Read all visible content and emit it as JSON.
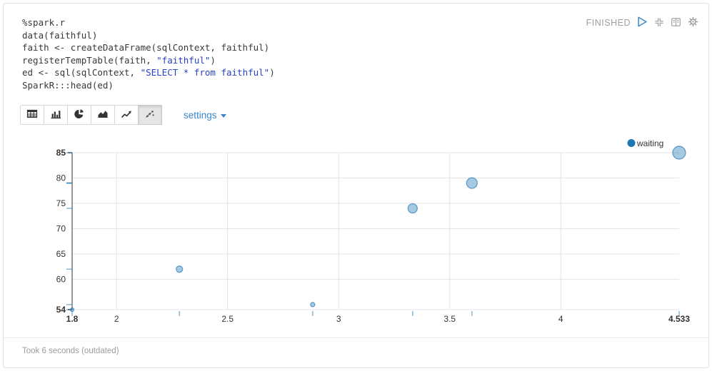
{
  "paragraph": {
    "status_label": "FINISHED",
    "footer_text": "Took 6 seconds (outdated)"
  },
  "code_editor": {
    "interpreter": "%spark.r",
    "lines": [
      [
        {
          "t": "%spark.r"
        }
      ],
      [
        {
          "t": "data(faithful)"
        }
      ],
      [
        {
          "t": "faith <- createDataFrame(sqlContext, faithful)"
        }
      ],
      [
        {
          "t": "registerTempTable(faith, "
        },
        {
          "t": "\"faithful\"",
          "s": "string"
        },
        {
          "t": ")"
        }
      ],
      [
        {
          "t": "ed <- sql(sqlContext, "
        },
        {
          "t": "\"SELECT * from faithful\"",
          "s": "string"
        },
        {
          "t": ")"
        }
      ],
      [
        {
          "t": "SparkR:::head(ed)"
        }
      ]
    ]
  },
  "toolbar": {
    "viz_buttons": [
      {
        "name": "table",
        "selected": false
      },
      {
        "name": "bar-chart",
        "selected": false
      },
      {
        "name": "pie-chart",
        "selected": false
      },
      {
        "name": "area-chart",
        "selected": false
      },
      {
        "name": "line-chart",
        "selected": false
      },
      {
        "name": "scatter-chart",
        "selected": true
      }
    ],
    "settings_label": "settings"
  },
  "chart_data": {
    "type": "scatter",
    "title": "",
    "xlabel": "",
    "ylabel": "",
    "xlim": [
      1.8,
      4.533
    ],
    "ylim": [
      54,
      85
    ],
    "grid": true,
    "legend_position": "top-right",
    "legend": [
      {
        "label": "waiting",
        "color": "#1f77b4"
      }
    ],
    "x_ticks": [
      {
        "v": 1.8,
        "label": "1.8",
        "bold": true
      },
      {
        "v": 2,
        "label": "2",
        "bold": false
      },
      {
        "v": 2.5,
        "label": "2.5",
        "bold": false
      },
      {
        "v": 3,
        "label": "3",
        "bold": false
      },
      {
        "v": 3.5,
        "label": "3.5",
        "bold": false
      },
      {
        "v": 4,
        "label": "4",
        "bold": false
      },
      {
        "v": 4.533,
        "label": "4.533",
        "bold": true
      }
    ],
    "y_ticks": [
      {
        "v": 54,
        "label": "54",
        "bold": true
      },
      {
        "v": 60,
        "label": "60",
        "bold": false
      },
      {
        "v": 65,
        "label": "65",
        "bold": false
      },
      {
        "v": 70,
        "label": "70",
        "bold": false
      },
      {
        "v": 75,
        "label": "75",
        "bold": false
      },
      {
        "v": 80,
        "label": "80",
        "bold": false
      },
      {
        "v": 85,
        "label": "85",
        "bold": true
      }
    ],
    "series": [
      {
        "name": "waiting",
        "color": "#1f77b4",
        "points": [
          {
            "x": 1.8,
            "y": 54,
            "r": 2.5
          },
          {
            "x": 2.283,
            "y": 62,
            "r": 4.5
          },
          {
            "x": 2.883,
            "y": 55,
            "r": 3
          },
          {
            "x": 3.333,
            "y": 74,
            "r": 6.5
          },
          {
            "x": 3.6,
            "y": 79,
            "r": 7.5,
            "y_tick_strong": true
          },
          {
            "x": 4.533,
            "y": 85,
            "r": 9
          }
        ]
      }
    ]
  },
  "colors": {
    "accent_blue": "#3a87c8",
    "series_blue": "#1f77b4",
    "status_gray": "#9e9e9e",
    "code_string_blue": "#2742c4",
    "grid_gray": "#e5e5e5"
  }
}
